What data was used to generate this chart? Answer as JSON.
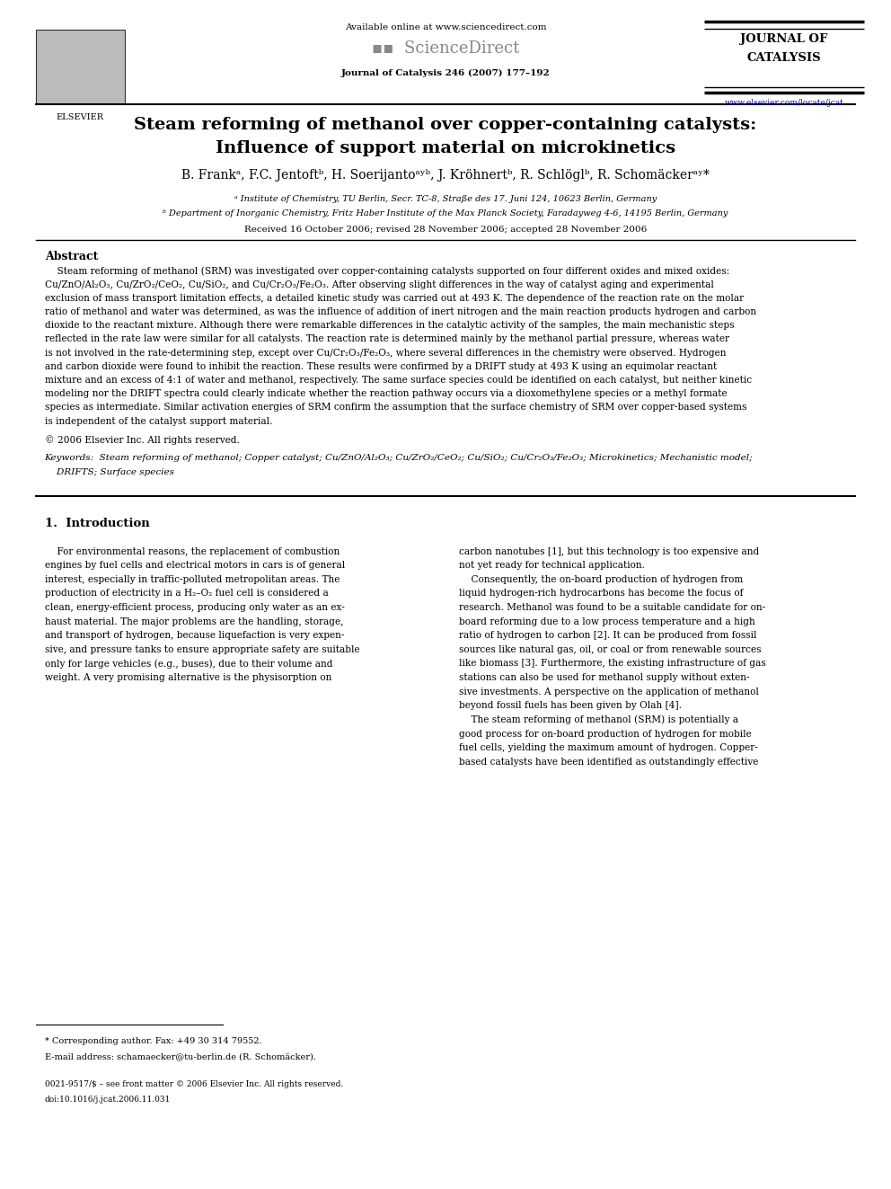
{
  "bg_color": "#ffffff",
  "title_line1": "Steam reforming of methanol over copper-containing catalysts:",
  "title_line2": "Influence of support material on microkinetics",
  "authors": "B. Frankᵃ, F.C. Jentoftᵇ, H. Soerijantoᵃʸᵇ, J. Kröhnertᵇ, R. Schlöglᵇ, R. Schomäckerᵃʸ*",
  "affil_a": "ᵃ Institute of Chemistry, TU Berlin, Secr. TC-8, Straße des 17. Juni 124, 10623 Berlin, Germany",
  "affil_b": "ᵇ Department of Inorganic Chemistry, Fritz Haber Institute of the Max Planck Society, Faradayweg 4-6, 14195 Berlin, Germany",
  "received": "Received 16 October 2006; revised 28 November 2006; accepted 28 November 2006",
  "journal_name": "Journal of Catalysis 246 (2007) 177–192",
  "available_online": "Available online at www.sciencedirect.com",
  "journal_of": "JOURNAL OF",
  "catalysis": "CATALYSIS",
  "elsevier_text": "ELSEVIER",
  "website": "www.elsevier.com/locate/jcat",
  "abstract_title": "Abstract",
  "abstract_text": "    Steam reforming of methanol (SRM) was investigated over copper-containing catalysts supported on four different oxides and mixed oxides: Cu/ZnO/Al₂O₃, Cu/ZrO₂/CeO₂, Cu/SiO₂, and Cu/Cr₂O₃/Fe₂O₃. After observing slight differences in the way of catalyst aging and experimental exclusion of mass transport limitation effects, a detailed kinetic study was carried out at 493 K. The dependence of the reaction rate on the molar ratio of methanol and water was determined, as was the influence of addition of inert nitrogen and the main reaction products hydrogen and carbon dioxide to the reactant mixture. Although there were remarkable differences in the catalytic activity of the samples, the main mechanistic steps reflected in the rate law were similar for all catalysts. The reaction rate is determined mainly by the methanol partial pressure, whereas water is not involved in the rate-determining step, except over Cu/Cr₂O₃/Fe₂O₃, where several differences in the chemistry were observed. Hydrogen and carbon dioxide were found to inhibit the reaction. These results were confirmed by a DRIFT study at 493 K using an equimolar reactant mixture and an excess of 4:1 of water and methanol, respectively. The same surface species could be identified on each catalyst, but neither kinetic modeling nor the DRIFT spectra could clearly indicate whether the reaction pathway occurs via a dioxomethylene species or a methyl formate species as intermediate. Similar activation energies of SRM confirm the assumption that the surface chemistry of SRM over copper-based systems is independent of the catalyst support material.",
  "copyright": "© 2006 Elsevier Inc. All rights reserved.",
  "keywords_label": "Keywords:",
  "keywords_text": " Steam reforming of methanol; Copper catalyst; Cu/ZnO/Al₂O₃; Cu/ZrO₂/CeO₂; Cu/SiO₂; Cu/Cr₂O₃/Fe₂O₃; Microkinetics; Mechanistic model; DRIFTS; Surface species",
  "intro_heading": "1.  Introduction",
  "intro_col1_lines": [
    "    For environmental reasons, the replacement of combustion",
    "engines by fuel cells and electrical motors in cars is of general",
    "interest, especially in traffic-polluted metropolitan areas. The",
    "production of electricity in a H₂–O₂ fuel cell is considered a",
    "clean, energy-efficient process, producing only water as an ex-",
    "haust material. The major problems are the handling, storage,",
    "and transport of hydrogen, because liquefaction is very expen-",
    "sive, and pressure tanks to ensure appropriate safety are suitable",
    "only for large vehicles (e.g., buses), due to their volume and",
    "weight. A very promising alternative is the physisorption on"
  ],
  "intro_col2_lines": [
    "carbon nanotubes [1], but this technology is too expensive and",
    "not yet ready for technical application.",
    "    Consequently, the on-board production of hydrogen from",
    "liquid hydrogen-rich hydrocarbons has become the focus of",
    "research. Methanol was found to be a suitable candidate for on-",
    "board reforming due to a low process temperature and a high",
    "ratio of hydrogen to carbon [2]. It can be produced from fossil",
    "sources like natural gas, oil, or coal or from renewable sources",
    "like biomass [3]. Furthermore, the existing infrastructure of gas",
    "stations can also be used for methanol supply without exten-",
    "sive investments. A perspective on the application of methanol",
    "beyond fossil fuels has been given by Olah [4].",
    "    The steam reforming of methanol (SRM) is potentially a",
    "good process for on-board production of hydrogen for mobile",
    "fuel cells, yielding the maximum amount of hydrogen. Copper-",
    "based catalysts have been identified as outstandingly effective"
  ],
  "footnote_star": "* Corresponding author. Fax: +49 30 314 79552.",
  "footnote_email": "E-mail address: schamaecker@tu-berlin.de (R. Schomäcker).",
  "footnote_issn": "0021-9517/$ – see front matter © 2006 Elsevier Inc. All rights reserved.",
  "footnote_doi": "doi:10.1016/j.jcat.2006.11.031",
  "abstract_lines": [
    "    Steam reforming of methanol (SRM) was investigated over copper-containing catalysts supported on four different oxides and mixed oxides:",
    "Cu/ZnO/Al₂O₃, Cu/ZrO₂/CeO₂, Cu/SiO₂, and Cu/Cr₂O₃/Fe₂O₃. After observing slight differences in the way of catalyst aging and experimental",
    "exclusion of mass transport limitation effects, a detailed kinetic study was carried out at 493 K. The dependence of the reaction rate on the molar",
    "ratio of methanol and water was determined, as was the influence of addition of inert nitrogen and the main reaction products hydrogen and carbon",
    "dioxide to the reactant mixture. Although there were remarkable differences in the catalytic activity of the samples, the main mechanistic steps",
    "reflected in the rate law were similar for all catalysts. The reaction rate is determined mainly by the methanol partial pressure, whereas water",
    "is not involved in the rate-determining step, except over Cu/Cr₂O₃/Fe₂O₃, where several differences in the chemistry were observed. Hydrogen",
    "and carbon dioxide were found to inhibit the reaction. These results were confirmed by a DRIFT study at 493 K using an equimolar reactant",
    "mixture and an excess of 4:1 of water and methanol, respectively. The same surface species could be identified on each catalyst, but neither kinetic",
    "modeling nor the DRIFT spectra could clearly indicate whether the reaction pathway occurs via a dioxomethylene species or a methyl formate",
    "species as intermediate. Similar activation energies of SRM confirm the assumption that the surface chemistry of SRM over copper-based systems",
    "is independent of the catalyst support material."
  ],
  "keywords_lines": [
    "Keywords:  Steam reforming of methanol; Copper catalyst; Cu/ZnO/Al₂O₃; Cu/ZrO₂/CeO₂; Cu/SiO₂; Cu/Cr₂O₃/Fe₂O₃; Microkinetics; Mechanistic model;",
    "    DRIFTS; Surface species"
  ]
}
